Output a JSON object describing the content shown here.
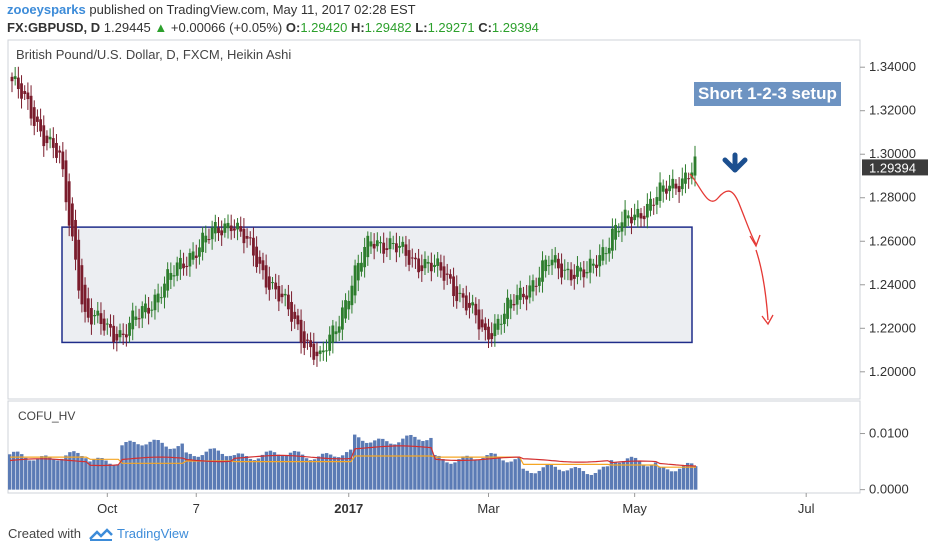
{
  "header": {
    "user": "zooeysparks",
    "published": "published on TradingView.com, May 11, 2017 02:28 EST",
    "symbol": "FX:GBPUSD, D",
    "price": "1.29445",
    "change": "+0.00066 (+0.05%)",
    "o_label": "O:",
    "o": "1.29420",
    "h_label": "H:",
    "h": "1.29482",
    "l_label": "L:",
    "l": "1.29271",
    "c_label": "C:",
    "c": "1.29394"
  },
  "annotation": "Short 1-2-3 setup",
  "indicator_name": "COFU_HV",
  "footer": {
    "created_with": "Created with",
    "brand": "TradingView"
  },
  "colors": {
    "up": "#2d7d2d",
    "down": "#7a1c2c",
    "box_border": "#1f2d8a",
    "box_fill": "#eceef2",
    "arrow": "#1c4f8f",
    "path": "#e53935",
    "hv_bar": "#5b7bb5",
    "hv_red": "#d32f2f",
    "hv_orange": "#f5a623"
  },
  "chart_data": [
    {
      "type": "candlestick",
      "title": "British Pound/U.S. Dollar, D, FXCM, Heikin Ashi",
      "x_ticks": [
        "Oct",
        "7",
        "2017",
        "Mar",
        "May",
        "Jul"
      ],
      "y_ticks": [
        "1.34000",
        "1.32000",
        "1.30000",
        "1.28000",
        "1.26000",
        "1.24000",
        "1.22000",
        "1.20000"
      ],
      "ylim": [
        1.1875,
        1.3525
      ],
      "last_price": 1.29394,
      "range_box": {
        "high": 1.2665,
        "low": 1.2135
      },
      "phases": [
        {
          "n": 16,
          "from": 1.336,
          "to": 1.297
        },
        {
          "n": 8,
          "from": 1.297,
          "to": 1.225
        },
        {
          "n": 12,
          "from": 1.225,
          "to": 1.217
        },
        {
          "n": 22,
          "from": 1.217,
          "to": 1.256
        },
        {
          "n": 12,
          "from": 1.256,
          "to": 1.27
        },
        {
          "n": 22,
          "from": 1.27,
          "to": 1.218
        },
        {
          "n": 6,
          "from": 1.218,
          "to": 1.204
        },
        {
          "n": 16,
          "from": 1.204,
          "to": 1.262
        },
        {
          "n": 24,
          "from": 1.262,
          "to": 1.244
        },
        {
          "n": 12,
          "from": 1.244,
          "to": 1.217
        },
        {
          "n": 20,
          "from": 1.217,
          "to": 1.25
        },
        {
          "n": 12,
          "from": 1.25,
          "to": 1.244
        },
        {
          "n": 8,
          "from": 1.244,
          "to": 1.264
        },
        {
          "n": 26,
          "from": 1.264,
          "to": 1.294
        }
      ]
    },
    {
      "type": "bar",
      "title": "COFU_HV",
      "y_ticks": [
        "0.0100",
        "0.0000"
      ],
      "ylim": [
        -0.0006,
        0.0158
      ],
      "segments": [
        {
          "n": 20,
          "bar": 0.0059,
          "red": 0.0052,
          "orange": 0.0058
        },
        {
          "n": 8,
          "bar": 0.0053,
          "red": 0.0046,
          "orange": 0.0054
        },
        {
          "n": 16,
          "bar": 0.0081,
          "red": 0.0055,
          "orange": 0.0047
        },
        {
          "n": 12,
          "bar": 0.0064,
          "red": 0.0053,
          "orange": 0.0051
        },
        {
          "n": 30,
          "bar": 0.0062,
          "red": 0.0058,
          "orange": 0.005
        },
        {
          "n": 20,
          "bar": 0.0089,
          "red": 0.0075,
          "orange": 0.006
        },
        {
          "n": 22,
          "bar": 0.0056,
          "red": 0.0055,
          "orange": 0.0058
        },
        {
          "n": 22,
          "bar": 0.0036,
          "red": 0.0052,
          "orange": 0.0045
        },
        {
          "n": 12,
          "bar": 0.005,
          "red": 0.0048,
          "orange": 0.0044
        },
        {
          "n": 10,
          "bar": 0.0038,
          "red": 0.0045,
          "orange": 0.004
        }
      ]
    }
  ]
}
